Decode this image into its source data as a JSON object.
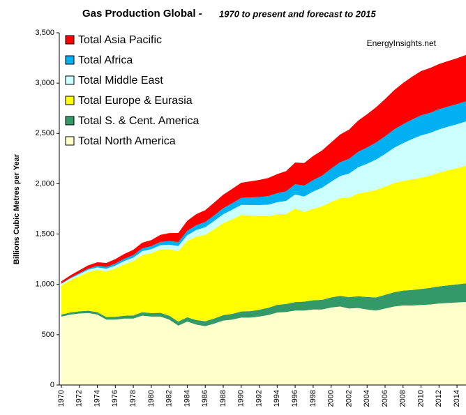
{
  "chart_data": {
    "type": "stacked_area",
    "title": "Gas Production Global -",
    "subtitle": "1970 to present and forecast to 2015",
    "annotation": "EnergyInsights.net",
    "y_label": "Billions Cubic Metres per Year",
    "legend": "top-left",
    "x": [
      1970,
      1971,
      1972,
      1973,
      1974,
      1975,
      1976,
      1977,
      1978,
      1979,
      1980,
      1981,
      1982,
      1983,
      1984,
      1985,
      1986,
      1987,
      1988,
      1989,
      1990,
      1991,
      1992,
      1993,
      1994,
      1995,
      1996,
      1997,
      1998,
      1999,
      2000,
      2001,
      2002,
      2003,
      2004,
      2005,
      2006,
      2007,
      2008,
      2009,
      2010,
      2011,
      2012,
      2013,
      2014,
      2015
    ],
    "xlim": [
      1970,
      2015
    ],
    "xticks": [
      1970,
      1972,
      1974,
      1976,
      1978,
      1980,
      1982,
      1984,
      1986,
      1988,
      1990,
      1992,
      1994,
      1996,
      1998,
      2000,
      2002,
      2004,
      2006,
      2008,
      2010,
      2012,
      2014
    ],
    "ylim": [
      0,
      3500
    ],
    "yticks": [
      0,
      500,
      {
        "value": 1000,
        "label": "1,000"
      },
      {
        "value": 1500,
        "label": "1,500"
      },
      {
        "value": 2000,
        "label": "2,000"
      },
      {
        "value": 2500,
        "label": "2,500"
      },
      {
        "value": 3000,
        "label": "3,000"
      },
      {
        "value": 3500,
        "label": "3,500"
      }
    ],
    "series": [
      {
        "name": "Total North America",
        "color": "#ffffcc",
        "values": [
          680,
          700,
          710,
          715,
          700,
          650,
          650,
          660,
          660,
          690,
          680,
          680,
          650,
          590,
          630,
          600,
          585,
          610,
          640,
          650,
          670,
          670,
          680,
          695,
          720,
          725,
          740,
          740,
          750,
          750,
          770,
          780,
          760,
          765,
          750,
          740,
          760,
          780,
          790,
          790,
          795,
          800,
          810,
          815,
          820,
          825
        ]
      },
      {
        "name": "Total S. & Cent. America",
        "color": "#339966",
        "values": [
          20,
          21,
          22,
          23,
          24,
          25,
          27,
          29,
          31,
          33,
          35,
          37,
          39,
          41,
          43,
          45,
          48,
          51,
          54,
          57,
          60,
          64,
          68,
          72,
          76,
          80,
          84,
          88,
          92,
          96,
          100,
          106,
          112,
          118,
          124,
          130,
          136,
          142,
          148,
          154,
          160,
          165,
          170,
          175,
          180,
          185
        ]
      },
      {
        "name": "Total Europe & Eurasia",
        "color": "#ffff00",
        "values": [
          290,
          320,
          350,
          385,
          420,
          453,
          480,
          510,
          540,
          570,
          595,
          630,
          660,
          700,
          760,
          830,
          860,
          890,
          915,
          940,
          960,
          950,
          930,
          910,
          900,
          895,
          930,
          890,
          910,
          930,
          950,
          970,
          990,
          1020,
          1045,
          1070,
          1075,
          1085,
          1090,
          1100,
          1105,
          1115,
          1130,
          1145,
          1155,
          1170
        ]
      },
      {
        "name": "Total Middle East",
        "color": "#ccffff",
        "values": [
          15,
          18,
          20,
          23,
          25,
          28,
          30,
          33,
          35,
          38,
          40,
          42,
          45,
          50,
          55,
          65,
          75,
          80,
          88,
          95,
          100,
          105,
          110,
          115,
          120,
          130,
          140,
          155,
          170,
          185,
          200,
          220,
          240,
          260,
          280,
          300,
          325,
          350,
          375,
          400,
          420,
          425,
          430,
          432,
          436,
          440
        ]
      },
      {
        "name": "Total Africa",
        "color": "#00b0f0",
        "values": [
          5,
          7,
          10,
          12,
          15,
          17,
          20,
          23,
          26,
          28,
          30,
          33,
          36,
          40,
          44,
          48,
          52,
          56,
          60,
          65,
          70,
          75,
          80,
          85,
          90,
          96,
          102,
          108,
          114,
          120,
          130,
          138,
          146,
          154,
          162,
          170,
          176,
          182,
          188,
          194,
          200,
          200,
          200,
          200,
          200,
          200
        ]
      },
      {
        "name": "Total Asia Pacific",
        "color": "#ff0000",
        "values": [
          20,
          24,
          28,
          32,
          36,
          40,
          44,
          48,
          52,
          56,
          60,
          70,
          80,
          90,
          100,
          110,
          118,
          126,
          134,
          142,
          150,
          160,
          170,
          180,
          190,
          200,
          215,
          225,
          240,
          250,
          260,
          275,
          290,
          310,
          330,
          350,
          370,
          390,
          410,
          425,
          440,
          445,
          450,
          452,
          456,
          460
        ]
      }
    ]
  }
}
